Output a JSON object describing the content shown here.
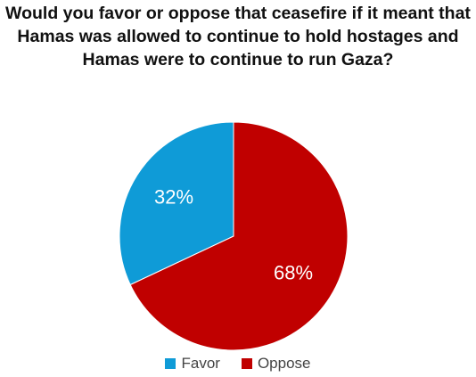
{
  "chart_data": {
    "type": "pie",
    "title_lines": [
      "Would you favor or oppose that ceasefire if it meant that",
      "Hamas was allowed to continue to hold hostages and",
      "Hamas were to continue to run Gaza?"
    ],
    "slices": [
      {
        "name": "Favor",
        "value": 32,
        "label": "32%",
        "color": "#0f9bd7"
      },
      {
        "name": "Oppose",
        "value": 68,
        "label": "68%",
        "color": "#c00000"
      }
    ],
    "legend_position": "bottom"
  }
}
